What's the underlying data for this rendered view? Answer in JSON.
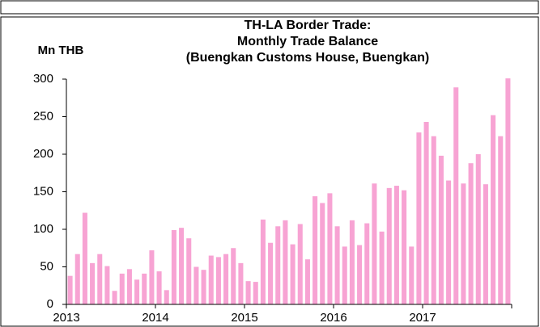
{
  "chart_data": {
    "type": "bar",
    "title": [
      "TH-LA Border Trade:",
      "Monthly Trade Balance",
      "(Buengkan Customs House, Buengkan)"
    ],
    "y_axis_label": "Mn THB",
    "categories": [
      "2013",
      null,
      null,
      null,
      null,
      null,
      null,
      null,
      null,
      null,
      null,
      null,
      "2014",
      null,
      null,
      null,
      null,
      null,
      null,
      null,
      null,
      null,
      null,
      null,
      "2015",
      null,
      null,
      null,
      null,
      null,
      null,
      null,
      null,
      null,
      null,
      null,
      "2016",
      null,
      null,
      null,
      null,
      null,
      null,
      null,
      null,
      null,
      null,
      null,
      "2017",
      null,
      null,
      null,
      null,
      null,
      null,
      null,
      null,
      null,
      null,
      null
    ],
    "values": [
      38,
      67,
      122,
      55,
      67,
      51,
      18,
      41,
      47,
      33,
      41,
      72,
      44,
      19,
      99,
      102,
      88,
      50,
      46,
      65,
      63,
      67,
      75,
      55,
      31,
      30,
      113,
      82,
      104,
      112,
      80,
      107,
      60,
      144,
      135,
      148,
      104,
      77,
      112,
      79,
      108,
      161,
      97,
      155,
      158,
      152,
      77,
      229,
      243,
      224,
      198,
      165,
      289,
      161,
      188,
      200,
      160,
      252,
      224,
      301
    ],
    "color": "#f7a3d3",
    "ylim": [
      0,
      300
    ],
    "yticks": [
      0,
      50,
      100,
      150,
      200,
      250,
      300
    ],
    "grid": false
  }
}
